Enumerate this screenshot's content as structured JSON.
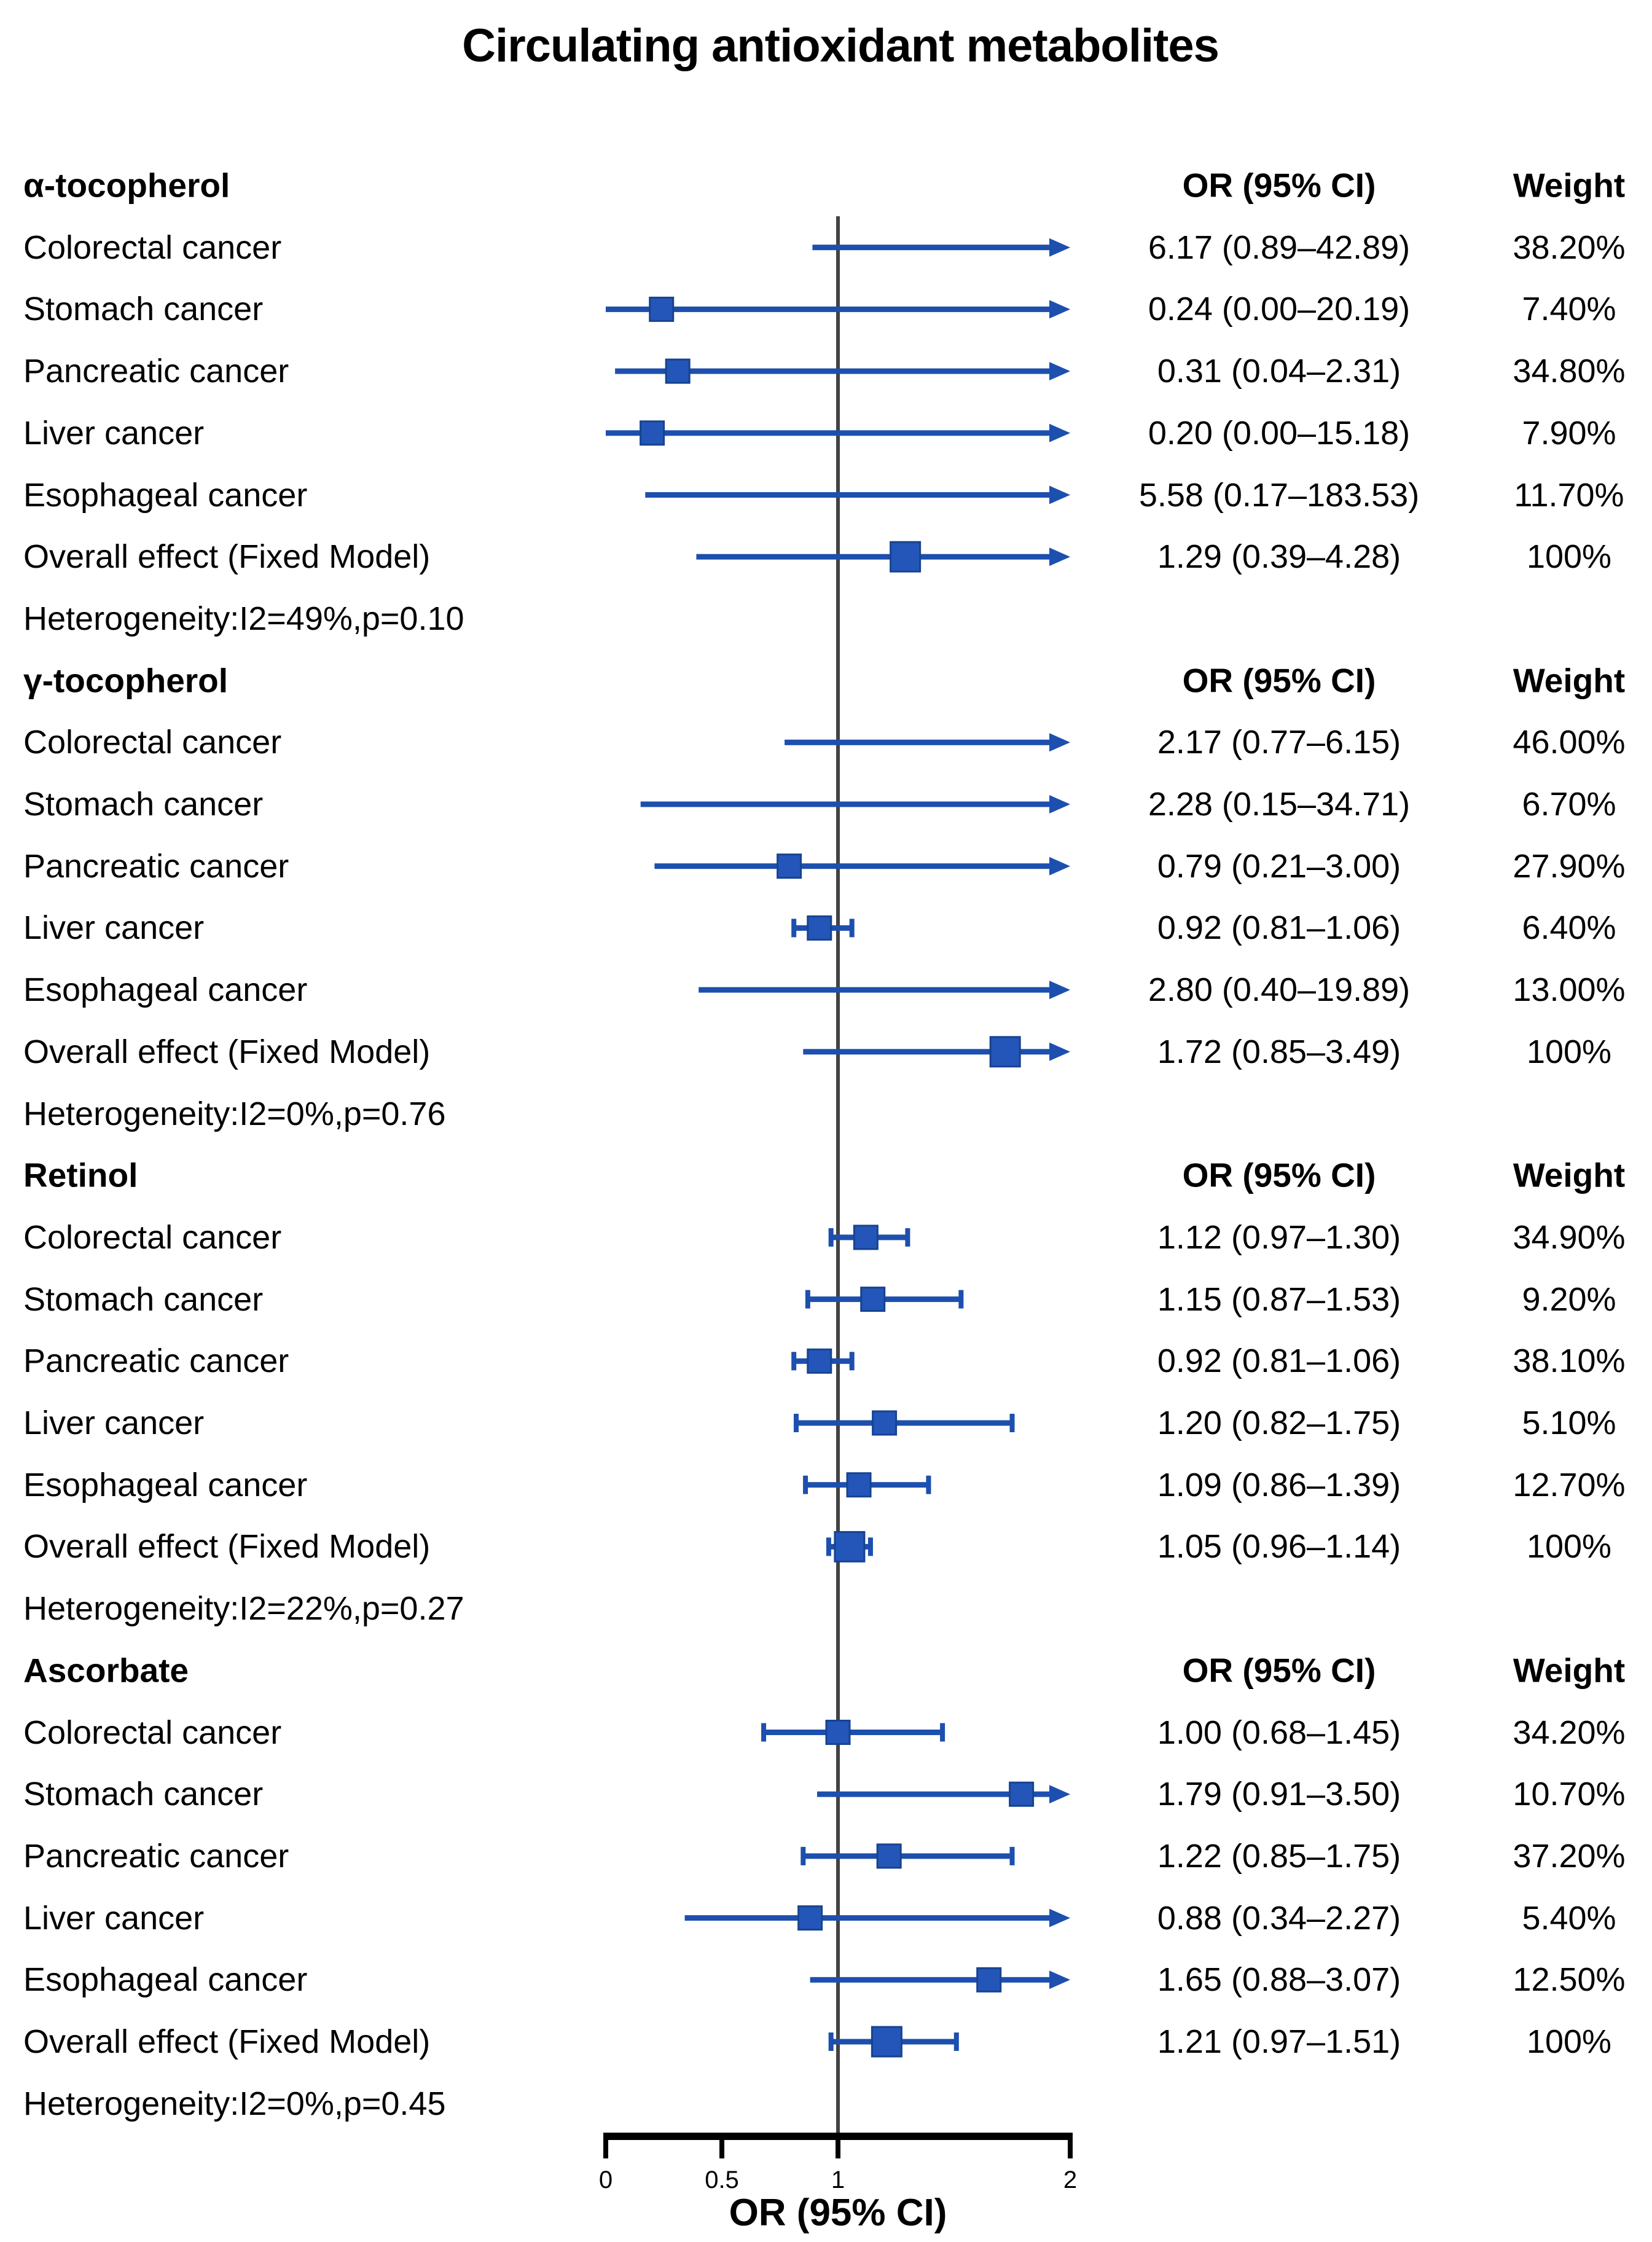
{
  "title": "Circulating antioxidant metabolites",
  "colors": {
    "ci_line": "#1d4fae",
    "square_fill": "#2356b8",
    "square_border": "#17438f",
    "reference_line": "#424242",
    "axis": "#000000",
    "text": "#000000",
    "background": "#ffffff"
  },
  "chart_data": {
    "type": "forest",
    "title": "Circulating antioxidant metabolites",
    "xlabel": "OR (95% CI)",
    "x_axis": {
      "scale": "linear",
      "min": 0,
      "max": 2,
      "tick_values": [
        0,
        0.5,
        1,
        2
      ],
      "tick_labels": [
        "0",
        "0.5",
        "1",
        "2"
      ],
      "reference_line": 1
    },
    "legend": "none",
    "grid": "off",
    "sections": [
      {
        "name": "α-tocopherol",
        "or_header": "OR (95% CI)",
        "weight_header": "Weight",
        "heterogeneity": "Heterogeneity:I2=49%,p=0.10",
        "rows": [
          {
            "label": "Colorectal cancer",
            "or": 6.17,
            "ci_low": 0.89,
            "ci_high": 42.89,
            "or_text": "6.17 (0.89–42.89)",
            "weight": 38.2,
            "weight_text": "38.20%"
          },
          {
            "label": "Stomach cancer",
            "or": 0.24,
            "ci_low": 0.0,
            "ci_high": 20.19,
            "or_text": "0.24 (0.00–20.19)",
            "weight": 7.4,
            "weight_text": "7.40%"
          },
          {
            "label": "Pancreatic cancer",
            "or": 0.31,
            "ci_low": 0.04,
            "ci_high": 2.31,
            "or_text": "0.31 (0.04–2.31)",
            "weight": 34.8,
            "weight_text": "34.80%"
          },
          {
            "label": "Liver cancer",
            "or": 0.2,
            "ci_low": 0.0,
            "ci_high": 15.18,
            "or_text": "0.20 (0.00–15.18)",
            "weight": 7.9,
            "weight_text": "7.90%"
          },
          {
            "label": "Esophageal cancer",
            "or": 5.58,
            "ci_low": 0.17,
            "ci_high": 183.53,
            "or_text": "5.58 (0.17–183.53)",
            "weight": 11.7,
            "weight_text": "11.70%"
          },
          {
            "label": "Overall effect (Fixed Model)",
            "or": 1.29,
            "ci_low": 0.39,
            "ci_high": 4.28,
            "or_text": "1.29 (0.39–4.28)",
            "weight": 100,
            "weight_text": "100%"
          }
        ]
      },
      {
        "name": "γ-tocopherol",
        "or_header": "OR (95% CI)",
        "weight_header": "Weight",
        "heterogeneity": "Heterogeneity:I2=0%,p=0.76",
        "rows": [
          {
            "label": "Colorectal cancer",
            "or": 2.17,
            "ci_low": 0.77,
            "ci_high": 6.15,
            "or_text": "2.17 (0.77–6.15)",
            "weight": 46.0,
            "weight_text": "46.00%"
          },
          {
            "label": "Stomach cancer",
            "or": 2.28,
            "ci_low": 0.15,
            "ci_high": 34.71,
            "or_text": "2.28 (0.15–34.71)",
            "weight": 6.7,
            "weight_text": "6.70%"
          },
          {
            "label": "Pancreatic cancer",
            "or": 0.79,
            "ci_low": 0.21,
            "ci_high": 3.0,
            "or_text": "0.79 (0.21–3.00)",
            "weight": 27.9,
            "weight_text": "27.90%"
          },
          {
            "label": "Liver cancer",
            "or": 0.92,
            "ci_low": 0.81,
            "ci_high": 1.06,
            "or_text": "0.92 (0.81–1.06)",
            "weight": 6.4,
            "weight_text": "6.40%"
          },
          {
            "label": "Esophageal cancer",
            "or": 2.8,
            "ci_low": 0.4,
            "ci_high": 19.89,
            "or_text": "2.80 (0.40–19.89)",
            "weight": 13.0,
            "weight_text": "13.00%"
          },
          {
            "label": "Overall effect (Fixed Model)",
            "or": 1.72,
            "ci_low": 0.85,
            "ci_high": 3.49,
            "or_text": "1.72 (0.85–3.49)",
            "weight": 100,
            "weight_text": "100%"
          }
        ]
      },
      {
        "name": "Retinol",
        "or_header": "OR (95% CI)",
        "weight_header": "Weight",
        "heterogeneity": "Heterogeneity:I2=22%,p=0.27",
        "rows": [
          {
            "label": "Colorectal cancer",
            "or": 1.12,
            "ci_low": 0.97,
            "ci_high": 1.3,
            "or_text": "1.12 (0.97–1.30)",
            "weight": 34.9,
            "weight_text": "34.90%"
          },
          {
            "label": "Stomach cancer",
            "or": 1.15,
            "ci_low": 0.87,
            "ci_high": 1.53,
            "or_text": "1.15 (0.87–1.53)",
            "weight": 9.2,
            "weight_text": "9.20%"
          },
          {
            "label": "Pancreatic cancer",
            "or": 0.92,
            "ci_low": 0.81,
            "ci_high": 1.06,
            "or_text": "0.92 (0.81–1.06)",
            "weight": 38.1,
            "weight_text": "38.10%"
          },
          {
            "label": "Liver cancer",
            "or": 1.2,
            "ci_low": 0.82,
            "ci_high": 1.75,
            "or_text": "1.20 (0.82–1.75)",
            "weight": 5.1,
            "weight_text": "5.10%"
          },
          {
            "label": "Esophageal cancer",
            "or": 1.09,
            "ci_low": 0.86,
            "ci_high": 1.39,
            "or_text": "1.09 (0.86–1.39)",
            "weight": 12.7,
            "weight_text": "12.70%"
          },
          {
            "label": "Overall effect (Fixed Model)",
            "or": 1.05,
            "ci_low": 0.96,
            "ci_high": 1.14,
            "or_text": "1.05 (0.96–1.14)",
            "weight": 100,
            "weight_text": "100%"
          }
        ]
      },
      {
        "name": "Ascorbate",
        "or_header": "OR (95% CI)",
        "weight_header": "Weight",
        "heterogeneity": "Heterogeneity:I2=0%,p=0.45",
        "rows": [
          {
            "label": "Colorectal cancer",
            "or": 1.0,
            "ci_low": 0.68,
            "ci_high": 1.45,
            "or_text": "1.00 (0.68–1.45)",
            "weight": 34.2,
            "weight_text": "34.20%"
          },
          {
            "label": "Stomach cancer",
            "or": 1.79,
            "ci_low": 0.91,
            "ci_high": 3.5,
            "or_text": "1.79 (0.91–3.50)",
            "weight": 10.7,
            "weight_text": "10.70%"
          },
          {
            "label": "Pancreatic cancer",
            "or": 1.22,
            "ci_low": 0.85,
            "ci_high": 1.75,
            "or_text": "1.22 (0.85–1.75)",
            "weight": 37.2,
            "weight_text": "37.20%"
          },
          {
            "label": "Liver cancer",
            "or": 0.88,
            "ci_low": 0.34,
            "ci_high": 2.27,
            "or_text": "0.88 (0.34–2.27)",
            "weight": 5.4,
            "weight_text": "5.40%"
          },
          {
            "label": "Esophageal cancer",
            "or": 1.65,
            "ci_low": 0.88,
            "ci_high": 3.07,
            "or_text": "1.65 (0.88–3.07)",
            "weight": 12.5,
            "weight_text": "12.50%"
          },
          {
            "label": "Overall effect (Fixed Model)",
            "or": 1.21,
            "ci_low": 0.97,
            "ci_high": 1.51,
            "or_text": "1.21 (0.97–1.51)",
            "weight": 100,
            "weight_text": "100%"
          }
        ]
      }
    ]
  }
}
